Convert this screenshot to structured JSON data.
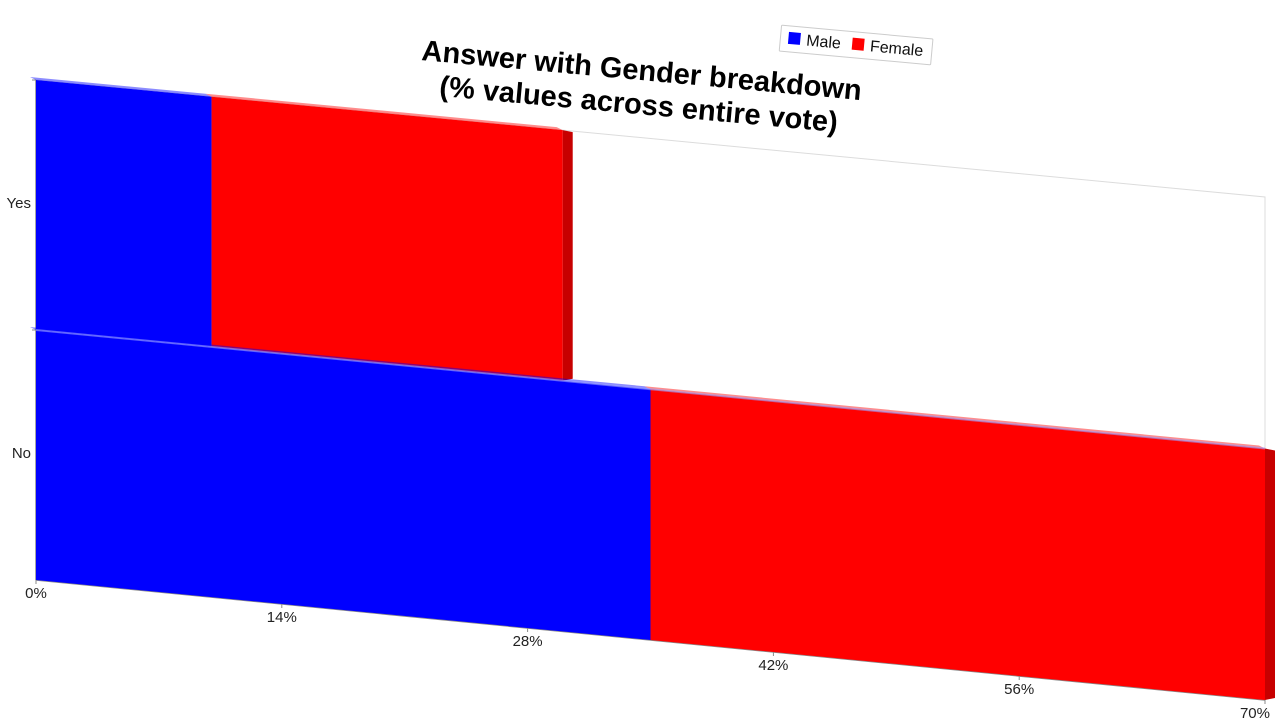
{
  "chart_data": {
    "type": "bar",
    "orientation": "horizontal",
    "stacked": true,
    "title": "Answer with Gender breakdown",
    "subtitle": "(% values across entire vote)",
    "categories": [
      "Yes",
      "No"
    ],
    "series": [
      {
        "name": "Male",
        "color": "#0000ff",
        "values": [
          10,
          35
        ]
      },
      {
        "name": "Female",
        "color": "#ff0000",
        "values": [
          20,
          35
        ]
      }
    ],
    "x_ticks": [
      "0%",
      "14%",
      "28%",
      "42%",
      "56%",
      "70%"
    ],
    "xlim": [
      0,
      70
    ],
    "legend_position": "top-right",
    "grid": false
  }
}
